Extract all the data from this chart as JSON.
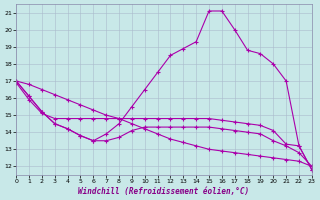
{
  "xlabel": "Windchill (Refroidissement éolien,°C)",
  "xlim": [
    0,
    23
  ],
  "ylim": [
    11.5,
    21.5
  ],
  "yticks": [
    12,
    13,
    14,
    15,
    16,
    17,
    18,
    19,
    20,
    21
  ],
  "xticks": [
    0,
    1,
    2,
    3,
    4,
    5,
    6,
    7,
    8,
    9,
    10,
    11,
    12,
    13,
    14,
    15,
    16,
    17,
    18,
    19,
    20,
    21,
    22,
    23
  ],
  "bg_color": "#c8e8e8",
  "line_color": "#aa00aa",
  "grid_color": "#aabbcc",
  "curve1_x": [
    0,
    1,
    2,
    3,
    4,
    5,
    6,
    7,
    8,
    9,
    10,
    11,
    12,
    13,
    14,
    15,
    16,
    17,
    18,
    19,
    20,
    21,
    22,
    23
  ],
  "curve1_y": [
    17.0,
    16.1,
    15.2,
    14.5,
    14.2,
    13.8,
    13.5,
    13.5,
    13.7,
    14.1,
    14.3,
    14.3,
    14.3,
    14.3,
    14.3,
    14.3,
    14.2,
    14.1,
    14.0,
    13.9,
    13.5,
    13.2,
    12.8,
    12.0
  ],
  "curve2_x": [
    0,
    1,
    2,
    3,
    4,
    5,
    6,
    7,
    8,
    9,
    10,
    11,
    12,
    13,
    14,
    15,
    16,
    17,
    18,
    19,
    20,
    21,
    22,
    23
  ],
  "curve2_y": [
    17.0,
    16.1,
    15.2,
    14.5,
    14.2,
    13.8,
    13.5,
    13.9,
    14.5,
    15.5,
    16.5,
    17.5,
    18.5,
    18.9,
    19.3,
    21.1,
    21.1,
    20.0,
    18.8,
    18.6,
    18.0,
    17.0,
    13.2,
    11.8
  ],
  "curve3_x": [
    0,
    1,
    2,
    3,
    4,
    5,
    6,
    7,
    8,
    9,
    10,
    11,
    12,
    13,
    14,
    15,
    16,
    17,
    18,
    19,
    20,
    21,
    22,
    23
  ],
  "curve3_y": [
    16.9,
    15.9,
    15.1,
    14.8,
    14.8,
    14.8,
    14.8,
    14.8,
    14.8,
    14.8,
    14.8,
    14.8,
    14.8,
    14.8,
    14.8,
    14.8,
    14.7,
    14.6,
    14.5,
    14.4,
    14.1,
    13.3,
    13.2,
    11.8
  ],
  "curve4_x": [
    0,
    1,
    2,
    3,
    4,
    5,
    6,
    7,
    8,
    9,
    10,
    11,
    12,
    13,
    14,
    15,
    16,
    17,
    18,
    19,
    20,
    21,
    22,
    23
  ],
  "curve4_y": [
    17.0,
    16.8,
    16.5,
    16.2,
    15.9,
    15.6,
    15.3,
    15.0,
    14.8,
    14.5,
    14.2,
    13.9,
    13.6,
    13.4,
    13.2,
    13.0,
    12.9,
    12.8,
    12.7,
    12.6,
    12.5,
    12.4,
    12.3,
    12.0
  ]
}
